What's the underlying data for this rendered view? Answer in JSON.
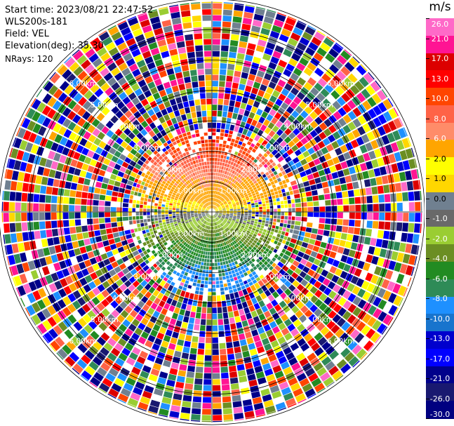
{
  "info": {
    "start_time": "Start time: 2023/08/21 22:47:52",
    "station": "WLS200s-181",
    "field": "Field: VEL",
    "elevation": "Elevation(deg): 35.30",
    "nrays": "NRays: 120"
  },
  "colorbar": {
    "unit": "m/s",
    "ticks": [
      "26.0",
      "21.0",
      "17.0",
      "13.0",
      "10.0",
      "8.0",
      "6.0",
      "2.0",
      "1.0",
      "0.0",
      "-1.0",
      "-2.0",
      "-4.0",
      "-6.0",
      "-8.0",
      "-10.0",
      "-13.0",
      "-17.0",
      "-21.0",
      "-26.0",
      "-30.0"
    ],
    "colors": [
      "#ff69c8",
      "#ff1493",
      "#dc0000",
      "#ff0000",
      "#ff4500",
      "#ff6347",
      "#ff8c69",
      "#ffa500",
      "#ffff00",
      "#ffd700",
      "#708090",
      "#696969",
      "#9acd32",
      "#6b8e23",
      "#228b22",
      "#2e8b57",
      "#1e90ff",
      "#1874cd",
      "#0000cd",
      "#0000ff",
      "#00008b",
      "#191970",
      "#000080"
    ]
  },
  "chart_data": {
    "type": "heatmap",
    "subtype": "radar-ppi",
    "field": "VEL",
    "units": "m/s",
    "range_ring_labels": [
      "1.00km",
      "2.00km",
      "3.00km",
      "4.00km",
      "5.00km",
      "6.00km"
    ],
    "range_rings_km": [
      1,
      2,
      3,
      4,
      5,
      6,
      7
    ],
    "colorbar_levels": [
      26.0,
      21.0,
      17.0,
      13.0,
      10.0,
      8.0,
      6.0,
      2.0,
      1.0,
      0.0,
      -1.0,
      -2.0,
      -4.0,
      -6.0,
      -8.0,
      -10.0,
      -13.0,
      -17.0,
      -21.0,
      -26.0,
      -30.0
    ],
    "nrays": 120,
    "valid_data_range_km": 2.7,
    "pattern": "positive velocities to the north, negative to the south; noise beyond ~2.7 km"
  }
}
